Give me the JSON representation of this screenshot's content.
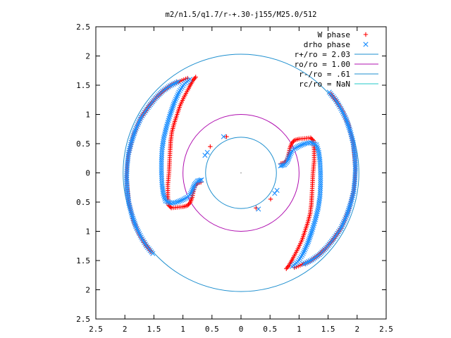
{
  "chart_data": {
    "type": "scatter",
    "title": "m2/n1.5/q1.7/r-+.30-j155/M25.0/512",
    "xlim": [
      -2.5,
      2.5
    ],
    "ylim": [
      -2.5,
      2.5
    ],
    "x_tick_labels": [
      "2.5",
      "2",
      "1.5",
      "1",
      "0.5",
      "0",
      "0.5",
      "1",
      "1.5",
      "2",
      "2.5"
    ],
    "y_tick_labels": [
      "2.5",
      "2",
      "1.5",
      "1",
      "0.5",
      "0",
      "0.5",
      "1",
      "1.5",
      "2",
      "2.5"
    ],
    "grid": false,
    "legend_position": "top-right",
    "legend": [
      {
        "label": "W phase",
        "marker": "plus",
        "color": "#ff0000"
      },
      {
        "label": "drho phase",
        "marker": "cross",
        "color": "#1e90ff"
      },
      {
        "label": "r+/ro = 2.03",
        "marker": "line",
        "color": "#1e8fcf"
      },
      {
        "label": "ro/ro = 1.00",
        "marker": "line",
        "color": "#b010b0"
      },
      {
        "label": "r-/ro = .61",
        "marker": "line",
        "color": "#1e8fcf"
      },
      {
        "label": "rc/ro = NaN",
        "marker": "line",
        "color": "#20c8c8"
      }
    ],
    "circles": [
      {
        "name": "r+/ro",
        "radius": 2.03,
        "color": "#1e8fcf"
      },
      {
        "name": "ro/ro",
        "radius": 1.0,
        "color": "#b010b0"
      },
      {
        "name": "r-/ro",
        "radius": 0.61,
        "color": "#1e8fcf"
      }
    ],
    "series": [
      {
        "name": "W phase",
        "color": "#ff0000",
        "marker": "plus",
        "spiral_arm": [
          [
            0.69,
            0.16
          ],
          [
            0.74,
            0.17
          ],
          [
            0.79,
            0.22
          ],
          [
            0.82,
            0.32
          ],
          [
            0.84,
            0.42
          ],
          [
            0.87,
            0.5
          ],
          [
            0.92,
            0.56
          ],
          [
            1.0,
            0.58
          ],
          [
            1.1,
            0.59
          ],
          [
            1.2,
            0.6
          ],
          [
            1.25,
            0.55
          ],
          [
            1.26,
            0.4
          ],
          [
            1.26,
            0.2
          ],
          [
            1.24,
            0.0
          ],
          [
            1.23,
            -0.2
          ],
          [
            1.22,
            -0.4
          ],
          [
            1.21,
            -0.55
          ],
          [
            1.19,
            -0.7
          ],
          [
            1.15,
            -0.85
          ],
          [
            1.1,
            -1.0
          ],
          [
            1.05,
            -1.15
          ],
          [
            0.98,
            -1.3
          ],
          [
            0.9,
            -1.45
          ],
          [
            0.83,
            -1.58
          ],
          [
            0.78,
            -1.64
          ]
        ],
        "outer_ring": [
          [
            1.55,
            1.35
          ],
          [
            1.65,
            1.22
          ],
          [
            1.75,
            1.05
          ],
          [
            1.84,
            0.85
          ],
          [
            1.9,
            0.65
          ],
          [
            1.94,
            0.45
          ],
          [
            1.96,
            0.25
          ],
          [
            1.97,
            0.05
          ],
          [
            1.96,
            -0.15
          ],
          [
            1.93,
            -0.35
          ],
          [
            1.88,
            -0.55
          ],
          [
            1.8,
            -0.78
          ],
          [
            1.7,
            -0.98
          ],
          [
            1.58,
            -1.15
          ],
          [
            1.45,
            -1.3
          ],
          [
            1.32,
            -1.42
          ],
          [
            1.2,
            -1.5
          ],
          [
            1.05,
            -1.57
          ],
          [
            0.92,
            -1.62
          ]
        ],
        "scattered": [
          [
            -0.53,
            0.45
          ],
          [
            0.51,
            -0.45
          ],
          [
            -0.25,
            0.62
          ],
          [
            0.26,
            -0.6
          ]
        ]
      },
      {
        "name": "drho phase",
        "color": "#1e90ff",
        "marker": "cross",
        "spiral_arm": [
          [
            0.68,
            0.12
          ],
          [
            0.75,
            0.14
          ],
          [
            0.8,
            0.2
          ],
          [
            0.84,
            0.3
          ],
          [
            0.88,
            0.38
          ],
          [
            0.93,
            0.42
          ],
          [
            1.0,
            0.46
          ],
          [
            1.1,
            0.5
          ],
          [
            1.2,
            0.52
          ],
          [
            1.3,
            0.48
          ],
          [
            1.34,
            0.35
          ],
          [
            1.36,
            0.2
          ],
          [
            1.37,
            0.0
          ],
          [
            1.37,
            -0.2
          ],
          [
            1.36,
            -0.4
          ],
          [
            1.33,
            -0.6
          ],
          [
            1.28,
            -0.8
          ],
          [
            1.22,
            -1.0
          ],
          [
            1.15,
            -1.2
          ],
          [
            1.07,
            -1.38
          ],
          [
            0.98,
            -1.52
          ],
          [
            0.88,
            -1.6
          ]
        ],
        "outer_ring": [
          [
            1.52,
            1.38
          ],
          [
            1.63,
            1.25
          ],
          [
            1.72,
            1.1
          ],
          [
            1.81,
            0.92
          ],
          [
            1.88,
            0.72
          ],
          [
            1.93,
            0.52
          ],
          [
            1.96,
            0.3
          ],
          [
            1.97,
            0.08
          ],
          [
            1.96,
            -0.12
          ],
          [
            1.94,
            -0.32
          ],
          [
            1.89,
            -0.52
          ],
          [
            1.82,
            -0.73
          ],
          [
            1.72,
            -0.95
          ],
          [
            1.6,
            -1.12
          ],
          [
            1.48,
            -1.27
          ],
          [
            1.35,
            -1.4
          ],
          [
            1.22,
            -1.49
          ],
          [
            1.08,
            -1.56
          ]
        ],
        "scattered": [
          [
            -0.3,
            0.62
          ],
          [
            0.3,
            -0.62
          ],
          [
            -0.62,
            0.3
          ],
          [
            0.62,
            -0.3
          ],
          [
            0.58,
            -0.35
          ],
          [
            -0.58,
            0.35
          ]
        ]
      }
    ]
  }
}
